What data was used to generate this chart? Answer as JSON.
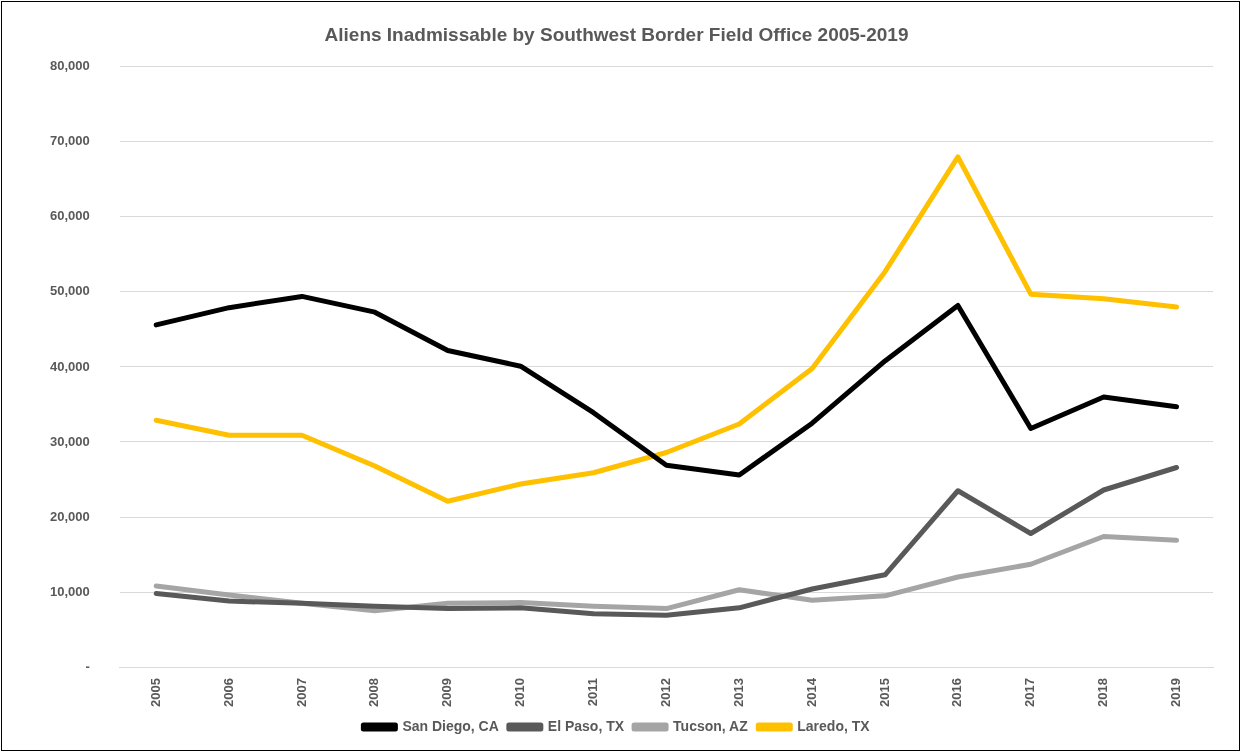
{
  "chart_data": {
    "type": "line",
    "title": "Aliens Inadmissable by Southwest Border Field Office 2005-2019",
    "categories": [
      "2005",
      "2006",
      "2007",
      "2008",
      "2009",
      "2010",
      "2011",
      "2012",
      "2013",
      "2014",
      "2015",
      "2016",
      "2017",
      "2018",
      "2019"
    ],
    "series": [
      {
        "name": "San Diego, CA",
        "color": "#000000",
        "values": [
          45600,
          47900,
          49400,
          47300,
          42200,
          40100,
          33900,
          26900,
          25600,
          32500,
          40800,
          48200,
          31800,
          36000,
          34700
        ]
      },
      {
        "name": "El Paso, TX",
        "color": "#595959",
        "values": [
          9800,
          8800,
          8500,
          8100,
          7800,
          7900,
          7100,
          6900,
          7900,
          10400,
          12300,
          23500,
          17800,
          23600,
          26600
        ]
      },
      {
        "name": "Tucson, AZ",
        "color": "#a5a5a5",
        "values": [
          10800,
          9600,
          8500,
          7500,
          8500,
          8600,
          8100,
          7800,
          10300,
          8900,
          9500,
          12000,
          13700,
          17400,
          16900
        ]
      },
      {
        "name": "Laredo, TX",
        "color": "#ffc000",
        "values": [
          32900,
          30900,
          30900,
          26800,
          22100,
          24400,
          25900,
          28600,
          32400,
          39800,
          52700,
          68000,
          49700,
          49100,
          48000
        ]
      }
    ],
    "ylim": [
      0,
      80000
    ],
    "yticks": [
      {
        "value": 0,
        "label": "-"
      },
      {
        "value": 10000,
        "label": "10,000"
      },
      {
        "value": 20000,
        "label": "20,000"
      },
      {
        "value": 30000,
        "label": "30,000"
      },
      {
        "value": 40000,
        "label": "40,000"
      },
      {
        "value": 50000,
        "label": "50,000"
      },
      {
        "value": 60000,
        "label": "60,000"
      },
      {
        "value": 70000,
        "label": "70,000"
      },
      {
        "value": 80000,
        "label": "80,000"
      }
    ],
    "grid": "y",
    "legend": "bottom",
    "marker": "none",
    "line_style": "solid"
  }
}
